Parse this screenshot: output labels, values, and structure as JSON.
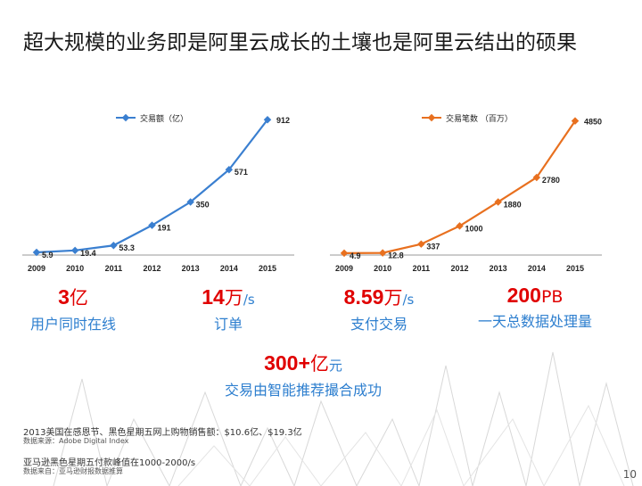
{
  "title": "超大规模的业务即是阿里云成长的土壤也是阿里云结出的硕果",
  "chart_data": [
    {
      "type": "line",
      "color": "#3a7fd0",
      "categories": [
        "2009",
        "2010",
        "2011",
        "2012",
        "2013",
        "2014",
        "2015"
      ],
      "series": [
        {
          "name": "交易额（亿）",
          "values": [
            5.9,
            19.4,
            53.3,
            191,
            350,
            571,
            912
          ]
        }
      ],
      "data_labels": [
        "5.9",
        "19.4",
        "53.3",
        "191",
        "350",
        "571",
        "912"
      ],
      "ylim": [
        0,
        950
      ]
    },
    {
      "type": "line",
      "color": "#e8701f",
      "categories": [
        "2009",
        "2010",
        "2011",
        "2012",
        "2013",
        "2014",
        "2015"
      ],
      "series": [
        {
          "name": "交易笔数 （百万）",
          "values": [
            4.9,
            12.8,
            337,
            1000,
            1880,
            2780,
            4850
          ]
        }
      ],
      "data_labels": [
        "4.9",
        "12.8",
        "337",
        "1000",
        "1880",
        "2780",
        "4850"
      ],
      "ylim": [
        0,
        5100
      ]
    }
  ],
  "stats": {
    "users": {
      "big": "3",
      "unit": "亿",
      "label": "用户同时在线"
    },
    "orders": {
      "big": "14",
      "unit": "万",
      "suffix": "/s",
      "label": "订单"
    },
    "payments": {
      "big": "8.59",
      "unit": "万",
      "suffix": "/s",
      "label": "支付交易"
    },
    "data": {
      "big": "200",
      "suffix": "PB",
      "label": "一天总数据处理量"
    },
    "smart": {
      "big": "300+",
      "unit": "亿",
      "suffix": "元",
      "label": "交易由智能推荐撮合成功"
    }
  },
  "notes": {
    "line1": "2013美国在感恩节、黑色星期五网上购物销售额：$10.6亿、$19.3亿",
    "line1_src": "数据来源：Adobe Digital Index",
    "line2": "亚马逊黑色星期五付款峰值在1000-2000/s",
    "line2_src": "数据来自：亚马逊财报数据推算"
  },
  "page_number": "10"
}
